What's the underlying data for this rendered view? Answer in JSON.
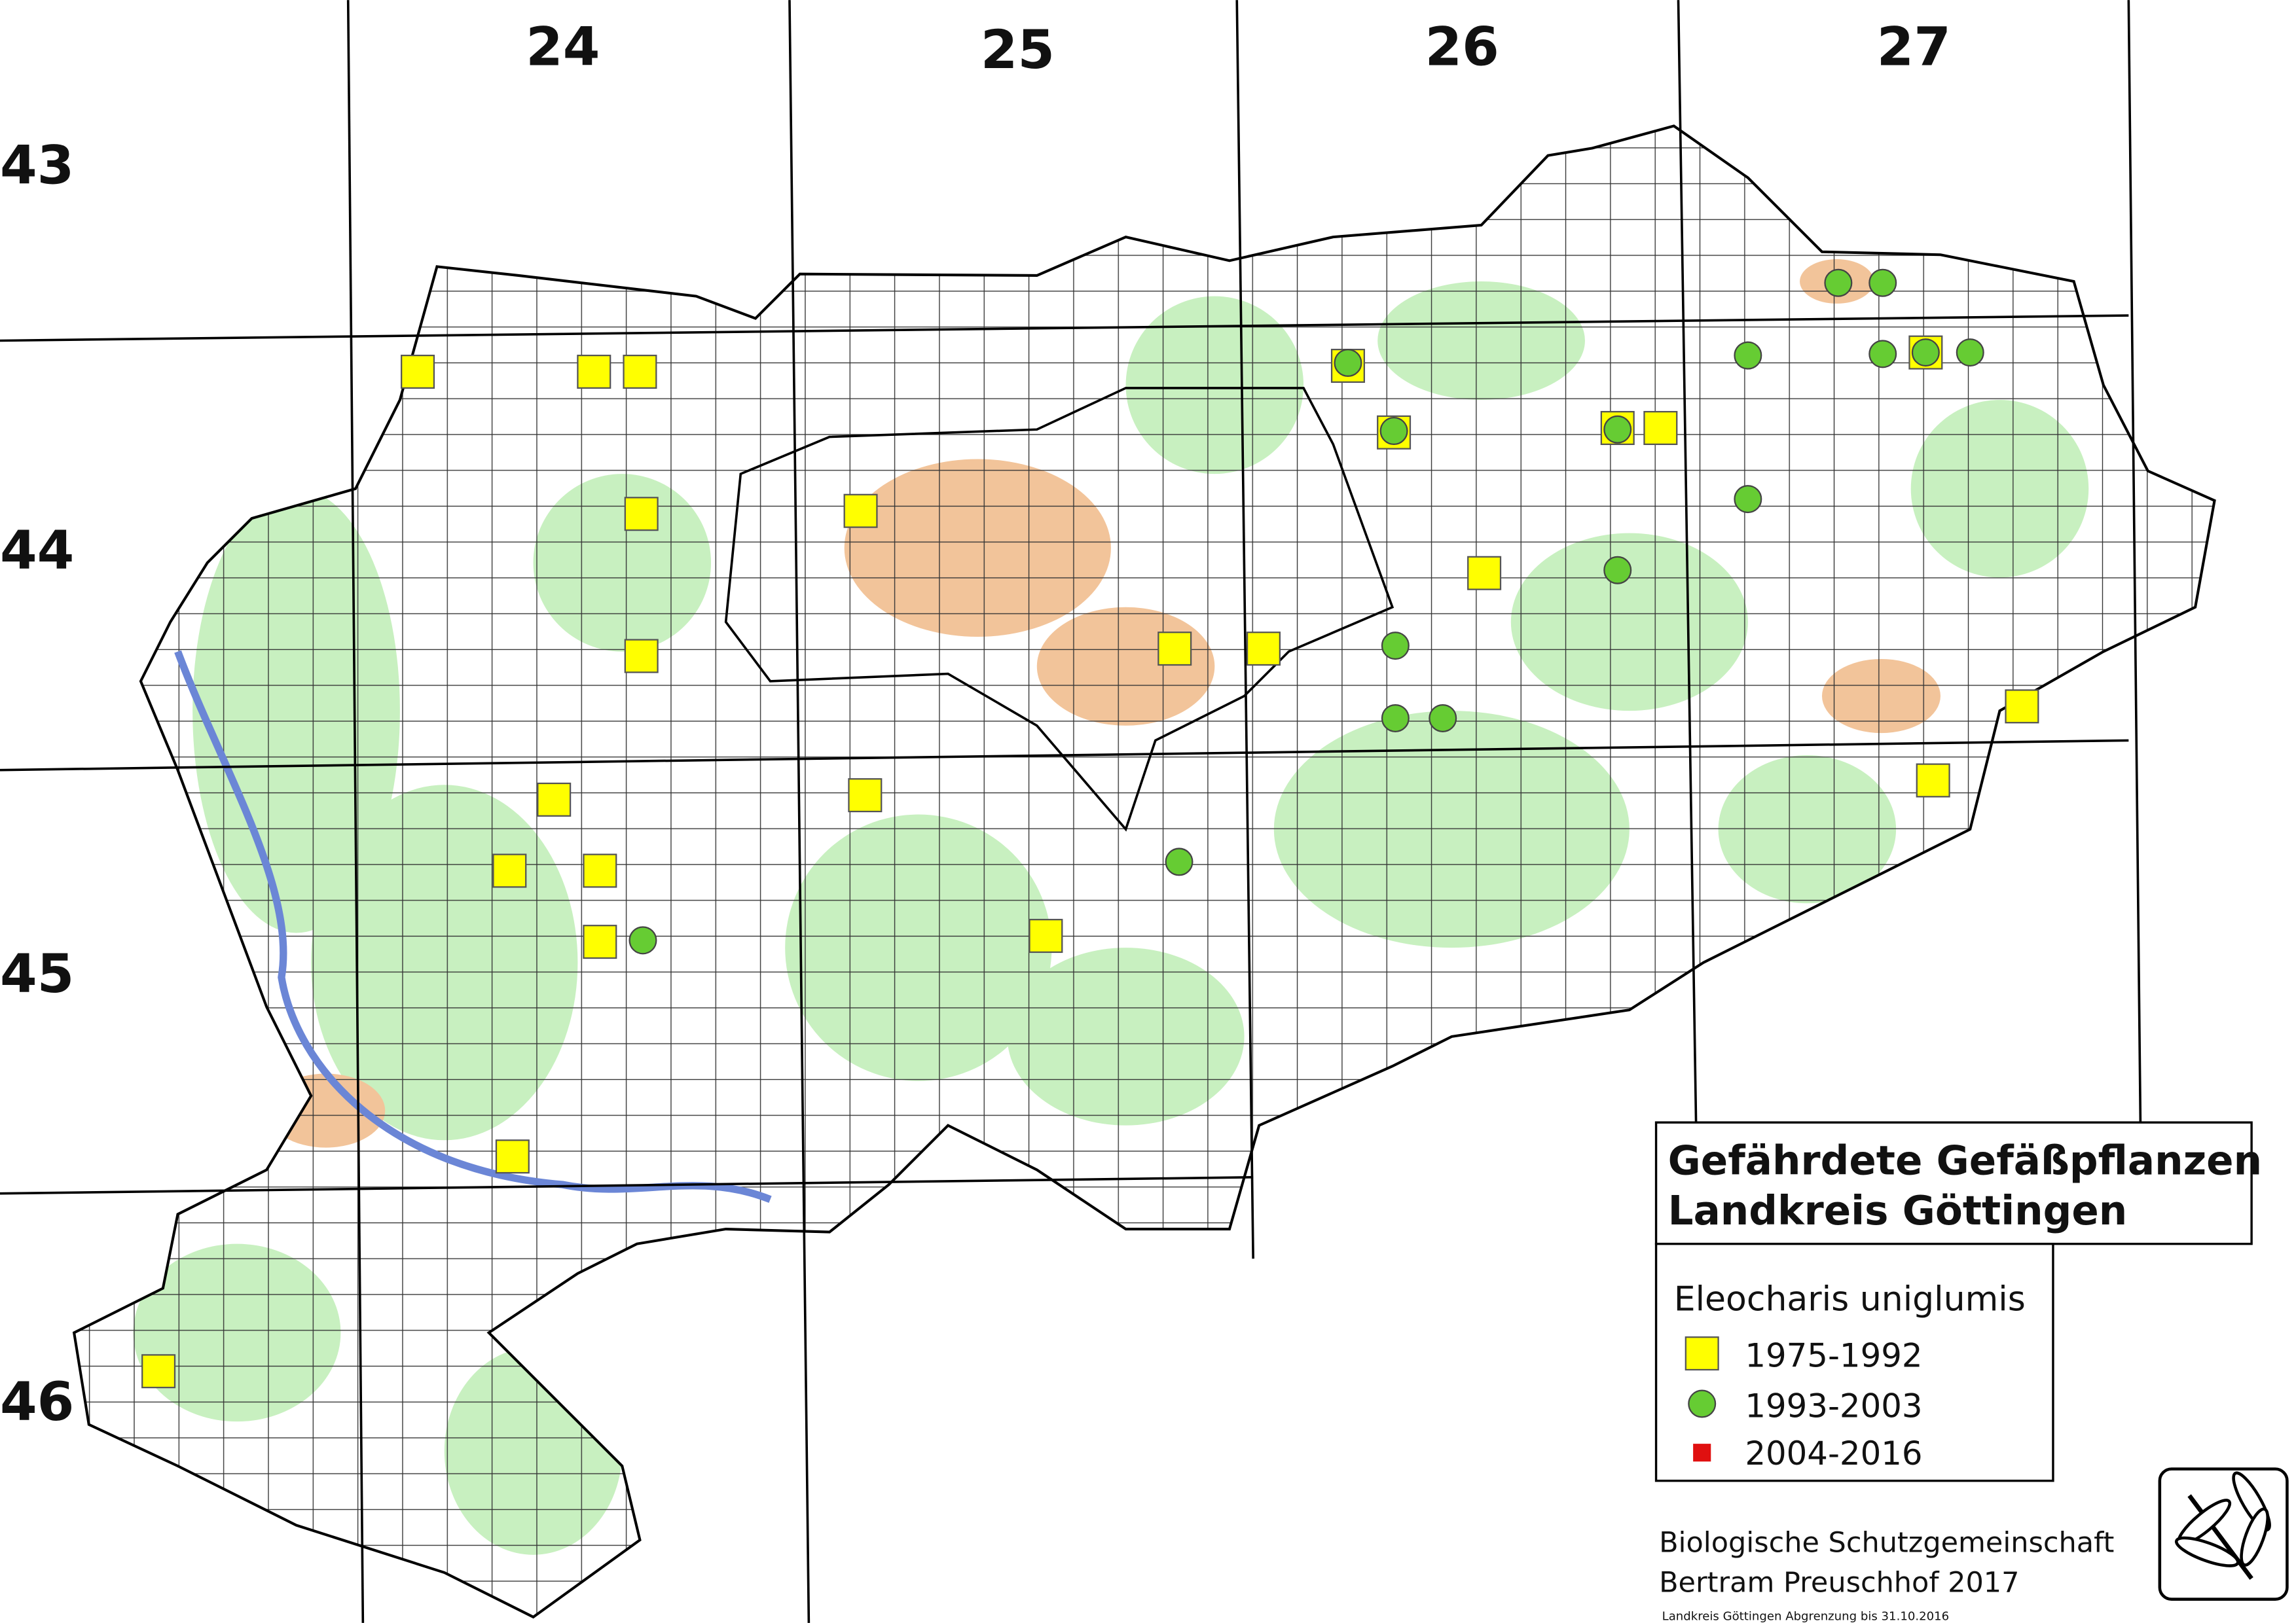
{
  "grid": {
    "columns": [
      "24",
      "25",
      "26",
      "27"
    ],
    "rows": [
      "43",
      "44",
      "45",
      "46"
    ]
  },
  "legend": {
    "title": [
      "Gefährdete Gefäßpflanzen",
      "Landkreis Göttingen"
    ],
    "species": "Eleocharis uniglumis",
    "periods": [
      "1975-1992",
      "1993-2003",
      "2004-2016"
    ]
  },
  "credits": [
    "Biologische Schutzgemeinschaft",
    "Bertram Preuschhof 2017"
  ],
  "footnote": "Landkreis Göttingen Abgrenzung bis 31.10.2016"
}
